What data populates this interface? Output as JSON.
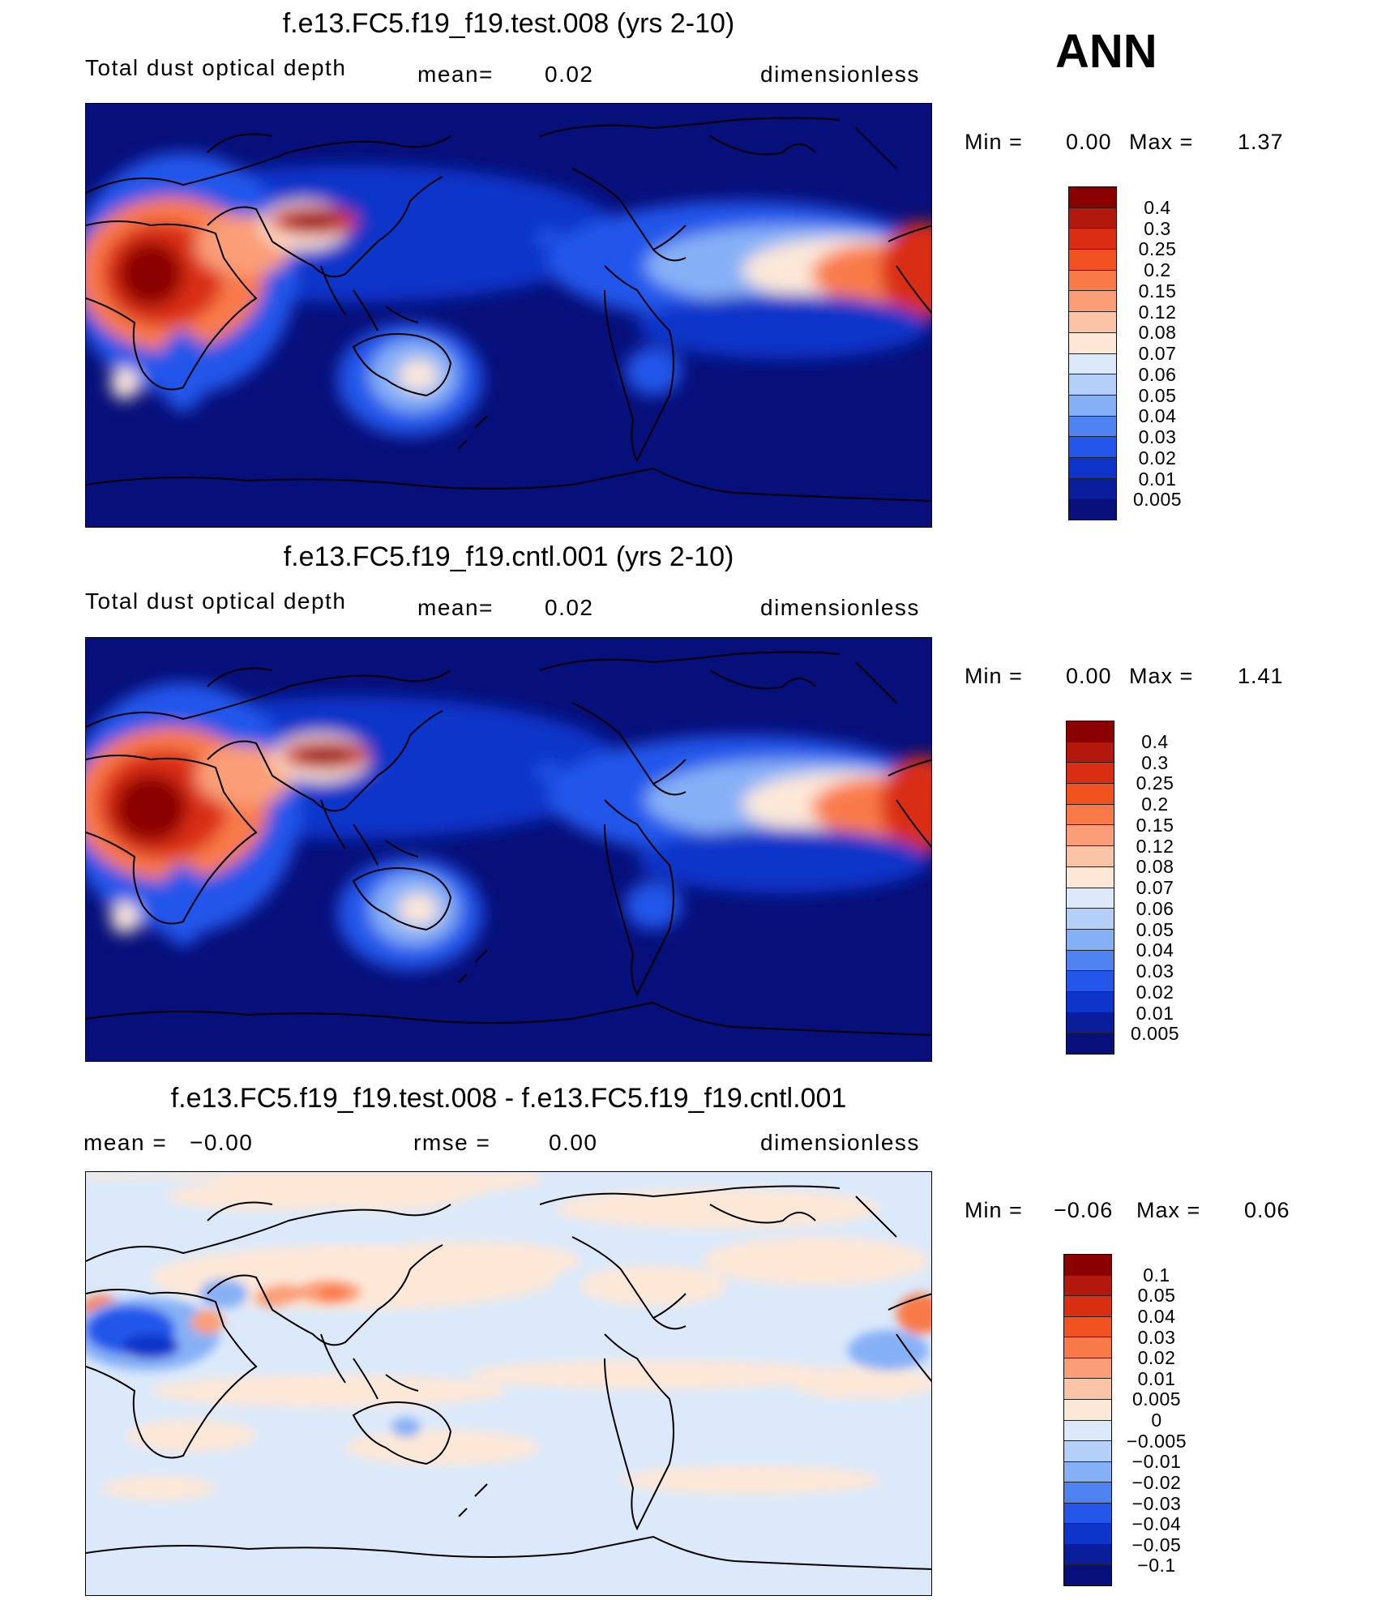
{
  "season": "ANN",
  "panels": [
    {
      "title": "f.e13.FC5.f19_f19.test.008 (yrs 2-10)",
      "left": "Total dust optical depth",
      "middle_label": "mean=",
      "middle_value": "0.02",
      "units": "dimensionless",
      "min_label": "Min =",
      "min_value": "0.00",
      "max_label": "Max =",
      "max_value": "1.37",
      "levels": [
        "0.4",
        "0.3",
        "0.25",
        "0.2",
        "0.15",
        "0.12",
        "0.08",
        "0.07",
        "0.06",
        "0.05",
        "0.04",
        "0.03",
        "0.02",
        "0.01",
        "0.005"
      ],
      "colors": [
        "#8b0000",
        "#b2180b",
        "#d92e12",
        "#f2521f",
        "#f97a49",
        "#fb9e77",
        "#fcc4a6",
        "#fde8d8",
        "#dbe9fa",
        "#b4d0f8",
        "#86b0f6",
        "#4f83f2",
        "#2456ea",
        "#0d35c9",
        "#0a1e9c",
        "#070f7a"
      ]
    },
    {
      "title": "f.e13.FC5.f19_f19.cntl.001 (yrs 2-10)",
      "left": "Total dust optical depth",
      "middle_label": "mean=",
      "middle_value": "0.02",
      "units": "dimensionless",
      "min_label": "Min =",
      "min_value": "0.00",
      "max_label": "Max =",
      "max_value": "1.41",
      "levels": [
        "0.4",
        "0.3",
        "0.25",
        "0.2",
        "0.15",
        "0.12",
        "0.08",
        "0.07",
        "0.06",
        "0.05",
        "0.04",
        "0.03",
        "0.02",
        "0.01",
        "0.005"
      ],
      "colors": [
        "#8b0000",
        "#b2180b",
        "#d92e12",
        "#f2521f",
        "#f97a49",
        "#fb9e77",
        "#fcc4a6",
        "#fde8d8",
        "#dbe9fa",
        "#b4d0f8",
        "#86b0f6",
        "#4f83f2",
        "#2456ea",
        "#0d35c9",
        "#0a1e9c",
        "#070f7a"
      ]
    },
    {
      "title": "f.e13.FC5.f19_f19.test.008 - f.e13.FC5.f19_f19.cntl.001",
      "left": "mean =   −0.00",
      "middle_label": "rmse =",
      "middle_value": "0.00",
      "units": "dimensionless",
      "min_label": "Min =",
      "min_value": "−0.06",
      "max_label": "Max =",
      "max_value": "0.06",
      "levels": [
        "0.1",
        "0.05",
        "0.04",
        "0.03",
        "0.02",
        "0.01",
        "0.005",
        "0",
        "−0.005",
        "−0.01",
        "−0.02",
        "−0.03",
        "−0.04",
        "−0.05",
        "−0.1"
      ],
      "colors": [
        "#8b0000",
        "#b2180b",
        "#d92e12",
        "#f2521f",
        "#f97a49",
        "#fb9e77",
        "#fcc4a6",
        "#fde8d8",
        "#dbe9fa",
        "#b4d0f8",
        "#86b0f6",
        "#4f83f2",
        "#2456ea",
        "#0d35c9",
        "#0a1e9c",
        "#070f7a"
      ]
    }
  ],
  "palette": {
    "ocean_low": "#0a1e9c",
    "diff_base": "#dbe9fa",
    "diff_pos": "#fde8d8",
    "coast": "#000000"
  }
}
